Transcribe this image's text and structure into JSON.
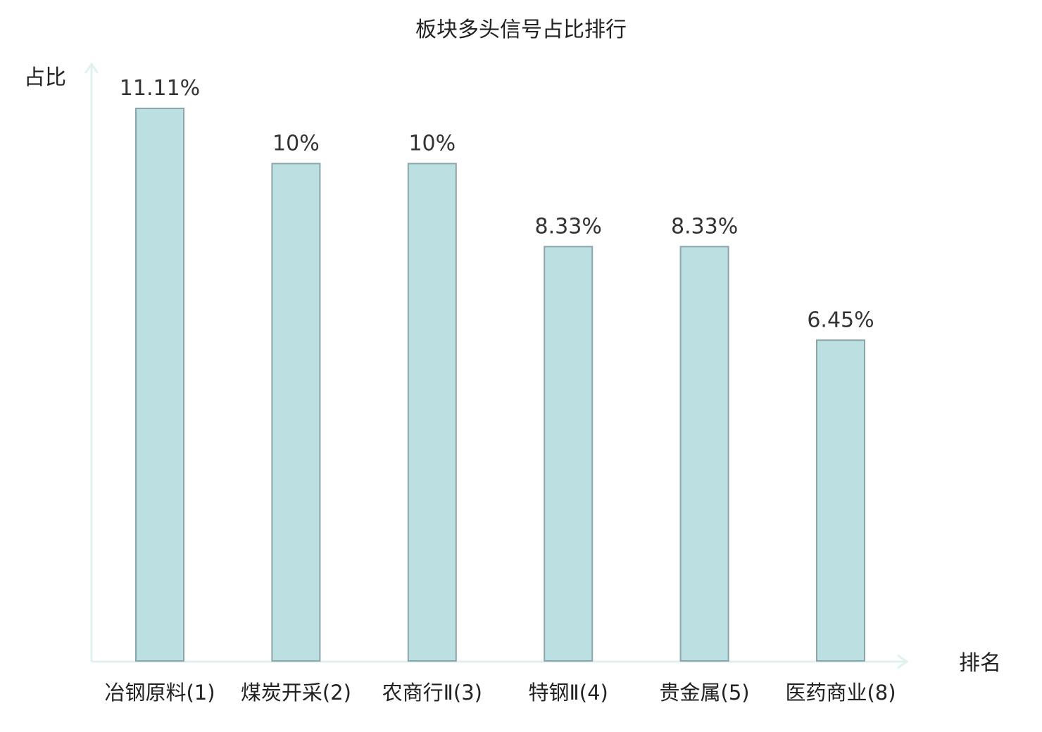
{
  "chart_data": {
    "type": "bar",
    "title": "板块多头信号占比排行",
    "ylabel": "占比",
    "xlabel": "排名",
    "ylim": [
      0,
      11.11
    ],
    "grid": false,
    "legend": "none",
    "categories": [
      "冶钢原料(1)",
      "煤炭开采(2)",
      "农商行Ⅱ(3)",
      "特钢Ⅱ(4)",
      "贵金属(5)",
      "医药商业(8)"
    ],
    "values": [
      11.11,
      10,
      10,
      8.33,
      8.33,
      6.45
    ],
    "value_labels": [
      "11.11%",
      "10%",
      "10%",
      "8.33%",
      "8.33%",
      "6.45%"
    ],
    "highlight_index": 5,
    "colors": {
      "bar_fill": "#bce0e2",
      "bar_stroke": "#8aa6aa",
      "axis": "#e0f1ef",
      "label": "#222222",
      "value_label": "#333333",
      "highlight_label": "#e02020"
    }
  }
}
